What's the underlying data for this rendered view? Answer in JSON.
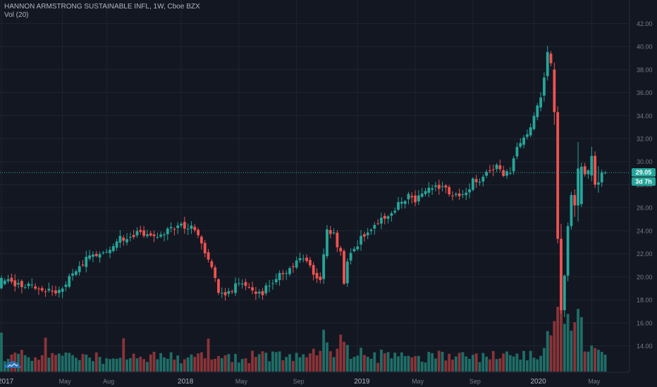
{
  "header": {
    "title": "HANNON ARMSTRONG SUSTAINABLE INFL, 1W, Cboe BZX",
    "volume_label": "Vol (20)"
  },
  "last_price_label": "29.05",
  "countdown_label": "3d 7h",
  "colors": {
    "background": "#131722",
    "grid": "#1f2430",
    "up": "#26a69a",
    "down": "#ef5350",
    "up_volume": "#1f6e67",
    "down_volume": "#8b3438",
    "axis_text": "#787b86",
    "price_line": "#26a69a"
  },
  "chart_data": {
    "type": "candlestick",
    "title": "HANNON ARMSTRONG SUSTAINABLE INFL, 1W, Cboe BZX",
    "y_axis": {
      "position": "right",
      "ticks": [
        "14.00",
        "16.00",
        "18.00",
        "20.00",
        "22.00",
        "24.00",
        "26.00",
        "28.00",
        "30.00",
        "32.00",
        "34.00",
        "36.00",
        "38.00",
        "40.00",
        "42.00"
      ],
      "range": [
        12.2,
        43.0
      ]
    },
    "x_axis": {
      "ticks": [
        "2017",
        "May",
        "Aug",
        "2018",
        "May",
        "Sep",
        "2019",
        "May",
        "Sep",
        "2020",
        "May"
      ],
      "bold_ticks": [
        "2017",
        "2018",
        "2019",
        "2020"
      ]
    },
    "last_price": 29.05,
    "grid": true,
    "volume_indicator": "Vol (20)",
    "anchors": [
      [
        0,
        19.6
      ],
      [
        8,
        19.3
      ],
      [
        15,
        18.6
      ],
      [
        20,
        19.8
      ],
      [
        25,
        21.5
      ],
      [
        30,
        22.2
      ],
      [
        35,
        23.3
      ],
      [
        40,
        23.9
      ],
      [
        45,
        23.6
      ],
      [
        50,
        24.3
      ],
      [
        53,
        24.5
      ],
      [
        56,
        24.4
      ],
      [
        58,
        23.8
      ],
      [
        60,
        22.2
      ],
      [
        62,
        21.0
      ],
      [
        64,
        18.4
      ],
      [
        66,
        18.6
      ],
      [
        70,
        19.4
      ],
      [
        74,
        18.9
      ],
      [
        76,
        18.4
      ],
      [
        80,
        19.5
      ],
      [
        84,
        20.6
      ],
      [
        88,
        21.5
      ],
      [
        90,
        21.6
      ],
      [
        92,
        20.2
      ],
      [
        94,
        19.7
      ],
      [
        96,
        23.8
      ],
      [
        98,
        23.5
      ],
      [
        100,
        22.0
      ],
      [
        101,
        19.5
      ],
      [
        102,
        21.5
      ],
      [
        106,
        23.3
      ],
      [
        110,
        24.5
      ],
      [
        114,
        25.4
      ],
      [
        118,
        26.7
      ],
      [
        120,
        27.1
      ],
      [
        122,
        26.8
      ],
      [
        126,
        27.5
      ],
      [
        128,
        28.0
      ],
      [
        131,
        27.6
      ],
      [
        135,
        27.1
      ],
      [
        139,
        28.2
      ],
      [
        142,
        28.6
      ],
      [
        144,
        29.0
      ],
      [
        146,
        29.6
      ],
      [
        148,
        28.8
      ],
      [
        150,
        28.9
      ],
      [
        152,
        31.4
      ],
      [
        155,
        32.3
      ],
      [
        157,
        33.8
      ],
      [
        159,
        35.8
      ],
      [
        160,
        37.5
      ],
      [
        161,
        39.2
      ],
      [
        162,
        38.2
      ],
      [
        163,
        34.3
      ],
      [
        164,
        24.0
      ],
      [
        165,
        21.6
      ],
      [
        166,
        18.1
      ],
      [
        167,
        23.3
      ],
      [
        168,
        27.1
      ],
      [
        170,
        26.3
      ],
      [
        171,
        29.4
      ],
      [
        173,
        28.9
      ],
      [
        174,
        30.2
      ],
      [
        176,
        29.3
      ],
      [
        177,
        28.2
      ],
      [
        178,
        29.05
      ]
    ],
    "overrides": [
      [
        0,
        19.0,
        19.9,
        18.9,
        20.1
      ],
      [
        163,
        38.0,
        34.3,
        33.2,
        38.6
      ],
      [
        164,
        34.3,
        23.3,
        22.9,
        34.8
      ],
      [
        165,
        23.3,
        17.1,
        16.8,
        24.6
      ],
      [
        166,
        17.1,
        20.1,
        16.5,
        20.2
      ],
      [
        167,
        20.1,
        24.4,
        19.6,
        24.7
      ],
      [
        168,
        24.4,
        27.1,
        24.1,
        27.4
      ],
      [
        169,
        27.1,
        26.2,
        25.2,
        27.6
      ],
      [
        170,
        26.2,
        29.4,
        24.8,
        31.7
      ],
      [
        174,
        28.8,
        30.5,
        28.3,
        31.3
      ],
      [
        175,
        30.5,
        28.0,
        27.7,
        30.9
      ],
      [
        176,
        28.0,
        28.2,
        27.3,
        29.6
      ],
      [
        177,
        28.2,
        29.05,
        27.8,
        29.3
      ],
      [
        178,
        29.05,
        29.05,
        28.9,
        29.2
      ]
    ]
  }
}
